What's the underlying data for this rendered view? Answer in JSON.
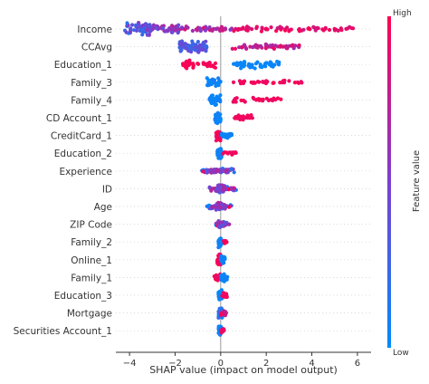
{
  "chart_data": {
    "type": "scatter",
    "subtype": "shap-beeswarm",
    "xlabel": "SHAP value (impact on model output)",
    "xlim": [
      -4.6,
      6.6
    ],
    "xticks": [
      -4,
      -2,
      0,
      2,
      4,
      6
    ],
    "zero_line": 0,
    "colorbar": {
      "label": "Feature value",
      "high_label": "High",
      "low_label": "Low",
      "high_color": "#ff0051",
      "low_color": "#008bfb"
    },
    "features": [
      {
        "name": "Income",
        "clusters": [
          {
            "from": -4.2,
            "to": -3.0,
            "n": 60,
            "spread": 8,
            "low": 0.15,
            "high": 0.6
          },
          {
            "from": -3.0,
            "to": -1.8,
            "n": 40,
            "spread": 5,
            "low": 0.3,
            "high": 0.75
          },
          {
            "from": -1.8,
            "to": 0.5,
            "n": 40,
            "spread": 3,
            "low": 0.5,
            "high": 0.9
          },
          {
            "from": 0.5,
            "to": 5.9,
            "n": 70,
            "spread": 3,
            "low": 0.8,
            "high": 1.0
          }
        ]
      },
      {
        "name": "CCAvg",
        "clusters": [
          {
            "from": -1.8,
            "to": -0.6,
            "n": 70,
            "spread": 7,
            "low": 0.2,
            "high": 0.45
          },
          {
            "from": 0.5,
            "to": 3.5,
            "n": 50,
            "spread": 3,
            "low": 0.55,
            "high": 0.95
          }
        ]
      },
      {
        "name": "Education_1",
        "clusters": [
          {
            "from": -1.7,
            "to": -0.2,
            "n": 40,
            "spread": 5,
            "low": 0.95,
            "high": 1.0
          },
          {
            "from": 0.4,
            "to": 2.6,
            "n": 50,
            "spread": 5,
            "low": 0.0,
            "high": 0.06
          }
        ]
      },
      {
        "name": "Family_3",
        "clusters": [
          {
            "from": -0.6,
            "to": 0.0,
            "n": 40,
            "spread": 6,
            "low": 0.0,
            "high": 0.1
          },
          {
            "from": 0.5,
            "to": 3.6,
            "n": 40,
            "spread": 2,
            "low": 0.9,
            "high": 1.0
          }
        ]
      },
      {
        "name": "Family_4",
        "clusters": [
          {
            "from": -0.5,
            "to": 0.0,
            "n": 35,
            "spread": 6,
            "low": 0.0,
            "high": 0.1
          },
          {
            "from": 0.5,
            "to": 2.7,
            "n": 30,
            "spread": 3,
            "low": 0.9,
            "high": 1.0
          }
        ]
      },
      {
        "name": "CD Account_1",
        "clusters": [
          {
            "from": -0.25,
            "to": 0.0,
            "n": 40,
            "spread": 7,
            "low": 0.0,
            "high": 0.1
          },
          {
            "from": 0.5,
            "to": 1.4,
            "n": 25,
            "spread": 3,
            "low": 0.9,
            "high": 1.0
          }
        ]
      },
      {
        "name": "CreditCard_1",
        "clusters": [
          {
            "from": -0.2,
            "to": 0.0,
            "n": 35,
            "spread": 6,
            "low": 0.9,
            "high": 1.0
          },
          {
            "from": 0.0,
            "to": 0.5,
            "n": 30,
            "spread": 3,
            "low": 0.0,
            "high": 0.1
          }
        ]
      },
      {
        "name": "Education_2",
        "clusters": [
          {
            "from": -0.15,
            "to": 0.05,
            "n": 40,
            "spread": 6,
            "low": 0.0,
            "high": 0.1
          },
          {
            "from": 0.1,
            "to": 0.7,
            "n": 15,
            "spread": 2,
            "low": 0.9,
            "high": 1.0
          }
        ]
      },
      {
        "name": "Experience",
        "clusters": [
          {
            "from": -0.9,
            "to": 0.6,
            "n": 50,
            "spread": 3,
            "low": 0.0,
            "high": 1.0
          },
          {
            "from": -0.4,
            "to": 0.3,
            "n": 30,
            "spread": 2,
            "low": 0.3,
            "high": 0.7
          }
        ]
      },
      {
        "name": "ID",
        "clusters": [
          {
            "from": -0.5,
            "to": 0.7,
            "n": 50,
            "spread": 3,
            "low": 0.0,
            "high": 1.0
          },
          {
            "from": -0.2,
            "to": 0.2,
            "n": 30,
            "spread": 5,
            "low": 0.3,
            "high": 0.7
          }
        ]
      },
      {
        "name": "Age",
        "clusters": [
          {
            "from": -0.6,
            "to": 0.5,
            "n": 50,
            "spread": 3,
            "low": 0.0,
            "high": 1.0
          },
          {
            "from": -0.2,
            "to": 0.2,
            "n": 30,
            "spread": 5,
            "low": 0.3,
            "high": 0.7
          }
        ]
      },
      {
        "name": "ZIP Code",
        "clusters": [
          {
            "from": -0.2,
            "to": 0.4,
            "n": 40,
            "spread": 3,
            "low": 0.0,
            "high": 1.0
          },
          {
            "from": -0.1,
            "to": 0.1,
            "n": 25,
            "spread": 5,
            "low": 0.3,
            "high": 0.7
          }
        ]
      },
      {
        "name": "Family_2",
        "clusters": [
          {
            "from": -0.1,
            "to": 0.05,
            "n": 40,
            "spread": 6,
            "low": 0.0,
            "high": 0.1
          },
          {
            "from": 0.1,
            "to": 0.3,
            "n": 10,
            "spread": 2,
            "low": 0.9,
            "high": 1.0
          }
        ]
      },
      {
        "name": "Online_1",
        "clusters": [
          {
            "from": -0.15,
            "to": 0.0,
            "n": 35,
            "spread": 6,
            "low": 0.9,
            "high": 1.0
          },
          {
            "from": 0.0,
            "to": 0.2,
            "n": 30,
            "spread": 5,
            "low": 0.0,
            "high": 0.1
          }
        ]
      },
      {
        "name": "Family_1",
        "clusters": [
          {
            "from": -0.3,
            "to": 0.0,
            "n": 25,
            "spread": 4,
            "low": 0.9,
            "high": 1.0
          },
          {
            "from": 0.0,
            "to": 0.3,
            "n": 30,
            "spread": 5,
            "low": 0.0,
            "high": 0.1
          }
        ]
      },
      {
        "name": "Education_3",
        "clusters": [
          {
            "from": -0.1,
            "to": 0.05,
            "n": 40,
            "spread": 6,
            "low": 0.0,
            "high": 0.1
          },
          {
            "from": 0.05,
            "to": 0.3,
            "n": 15,
            "spread": 3,
            "low": 0.9,
            "high": 1.0
          }
        ]
      },
      {
        "name": "Mortgage",
        "clusters": [
          {
            "from": -0.1,
            "to": 0.1,
            "n": 40,
            "spread": 6,
            "low": 0.0,
            "high": 0.3
          },
          {
            "from": 0.0,
            "to": 0.25,
            "n": 15,
            "spread": 3,
            "low": 0.6,
            "high": 1.0
          }
        ]
      },
      {
        "name": "Securities Account_1",
        "clusters": [
          {
            "from": -0.1,
            "to": 0.05,
            "n": 40,
            "spread": 6,
            "low": 0.0,
            "high": 0.1
          },
          {
            "from": 0.0,
            "to": 0.15,
            "n": 15,
            "spread": 3,
            "low": 0.9,
            "high": 1.0
          }
        ]
      }
    ]
  }
}
